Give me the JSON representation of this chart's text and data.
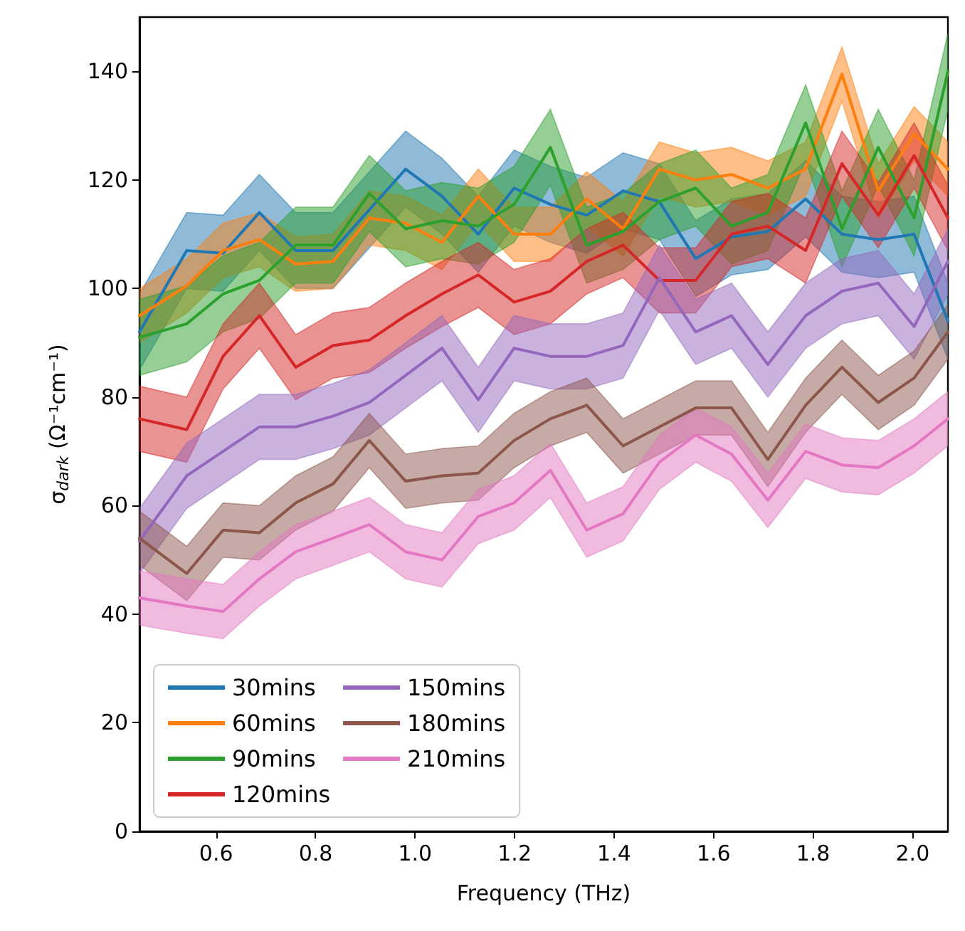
{
  "chart_data": {
    "type": "line",
    "xlabel": "Frequency (THz)",
    "ylabel": "σ$_{dark}$ (Ω⁻¹cm⁻¹)",
    "x": [
      0.446,
      0.541,
      0.614,
      0.687,
      0.76,
      0.835,
      0.908,
      0.981,
      1.054,
      1.127,
      1.199,
      1.272,
      1.345,
      1.418,
      1.491,
      1.564,
      1.636,
      1.709,
      1.785,
      1.858,
      1.931,
      2.003,
      2.071
    ],
    "xlim": [
      0.446,
      2.071
    ],
    "xticks": [
      0.6,
      0.8,
      {
        "value": 1.0,
        "label": "1.0"
      },
      1.2,
      1.4,
      1.6,
      1.8,
      {
        "value": 2.0,
        "label": "2.0"
      }
    ],
    "ylim": [
      0,
      150
    ],
    "yticks": [
      0,
      20,
      40,
      60,
      80,
      100,
      120,
      140
    ],
    "grid": false,
    "legend": "bottom left",
    "marker": "none",
    "line_style": "solid",
    "series": [
      {
        "name": "30mins",
        "color": "#1f77b4",
        "values": [
          92,
          107,
          106.5,
          114,
          107,
          107,
          114.5,
          122,
          117,
          110,
          118.5,
          115.5,
          113.5,
          118,
          116,
          105.5,
          109.5,
          110.5,
          116.5,
          110,
          109,
          110,
          94
        ],
        "upper": [
          99,
          114,
          113.5,
          121,
          114,
          114,
          121.5,
          129,
          124,
          117,
          125.5,
          122.5,
          120.5,
          125,
          123,
          112.5,
          116.5,
          117.5,
          123.5,
          117,
          116,
          117,
          101
        ],
        "lower": [
          85,
          100,
          99.5,
          107,
          100,
          100,
          107.5,
          115,
          110,
          103,
          111.5,
          108.5,
          106.5,
          111,
          109,
          98.5,
          102.5,
          103.5,
          109.5,
          103,
          102,
          103,
          87
        ]
      },
      {
        "name": "60mins",
        "color": "#ff7f0e",
        "values": [
          95,
          100.5,
          107,
          109,
          104.5,
          105,
          113,
          112,
          108.5,
          117,
          110,
          110,
          116.5,
          111,
          122,
          120,
          121,
          118.5,
          122,
          139.5,
          118,
          128.5,
          122
        ],
        "upper": [
          100,
          105.5,
          112,
          114,
          109.5,
          110,
          118,
          117,
          113.5,
          122,
          115,
          115,
          121.5,
          116,
          127,
          125,
          126,
          123.5,
          127,
          144.5,
          123,
          133.5,
          127
        ],
        "lower": [
          90,
          95.5,
          102,
          104,
          99.5,
          100,
          108,
          107,
          103.5,
          112,
          105,
          105,
          111.5,
          106,
          117,
          115,
          116,
          113.5,
          117,
          134.5,
          113,
          123.5,
          117
        ]
      },
      {
        "name": "90mins",
        "color": "#2ca02c",
        "values": [
          91,
          93.5,
          99,
          101.5,
          108,
          108,
          117.5,
          111,
          112.5,
          111.5,
          115.5,
          126,
          108,
          110.5,
          116,
          118.5,
          111.5,
          114,
          130.5,
          111,
          126,
          113,
          140
        ],
        "upper": [
          98,
          100.5,
          106,
          108.5,
          115,
          115,
          124.5,
          118,
          119.5,
          118.5,
          122.5,
          133,
          115,
          117.5,
          123,
          125.5,
          118.5,
          121,
          137.5,
          118,
          133,
          120,
          147
        ],
        "lower": [
          84,
          86.5,
          92,
          94.5,
          101,
          101,
          110.5,
          104,
          105.5,
          104.5,
          108.5,
          119,
          101,
          103.5,
          109,
          111.5,
          104.5,
          107,
          123.5,
          104,
          119,
          106,
          133
        ]
      },
      {
        "name": "120mins",
        "color": "#d62728",
        "values": [
          76,
          74,
          87.5,
          95,
          85.5,
          89.5,
          90.5,
          95,
          99,
          102.5,
          97.5,
          99.5,
          105,
          108,
          101.5,
          101.5,
          110,
          111.5,
          107,
          123,
          113.5,
          124.5,
          113
        ],
        "upper": [
          82,
          80,
          93.5,
          101,
          91.5,
          95.5,
          96.5,
          101,
          105,
          108.5,
          103.5,
          105.5,
          111,
          114,
          107.5,
          107.5,
          116,
          117.5,
          113,
          129,
          119.5,
          130.5,
          119
        ],
        "lower": [
          70,
          68,
          81.5,
          89,
          79.5,
          83.5,
          84.5,
          89,
          93,
          96.5,
          91.5,
          93.5,
          99,
          102,
          95.5,
          95.5,
          104,
          105.5,
          101,
          117,
          107.5,
          118.5,
          107
        ]
      },
      {
        "name": "150mins",
        "color": "#9467bd",
        "values": [
          53.5,
          65.5,
          70,
          74.5,
          74.5,
          76.5,
          79,
          84,
          89,
          79.5,
          89,
          87.5,
          87.5,
          89.5,
          102,
          92,
          95,
          86,
          95,
          99.5,
          101,
          93,
          105
        ],
        "upper": [
          59.5,
          71.5,
          76,
          80.5,
          80.5,
          82.5,
          85,
          90,
          95,
          85.5,
          95,
          93.5,
          93.5,
          95.5,
          108,
          98,
          101,
          92,
          101,
          105.5,
          107,
          99,
          111
        ],
        "lower": [
          47.5,
          59.5,
          64,
          68.5,
          68.5,
          70.5,
          73,
          78,
          83,
          73.5,
          83,
          81.5,
          81.5,
          83.5,
          96,
          86,
          89,
          80,
          89,
          93.5,
          95,
          87,
          99
        ]
      },
      {
        "name": "180mins",
        "color": "#8c564b",
        "values": [
          54,
          47.5,
          55.5,
          55,
          60.5,
          64,
          72,
          64.5,
          65.5,
          66,
          72,
          76,
          78.5,
          71,
          74.5,
          78,
          78,
          68.5,
          78.5,
          85.5,
          79,
          83.5,
          92
        ],
        "upper": [
          59,
          52.5,
          60.5,
          60,
          65.5,
          69,
          77,
          69.5,
          70.5,
          71,
          77,
          81,
          83.5,
          76,
          79.5,
          83,
          83,
          73.5,
          83.5,
          90.5,
          84,
          88.5,
          97
        ],
        "lower": [
          49,
          42.5,
          50.5,
          50,
          55.5,
          59,
          67,
          59.5,
          60.5,
          61,
          67,
          71,
          73.5,
          66,
          69.5,
          73,
          73,
          63.5,
          73.5,
          80.5,
          74,
          78.5,
          87
        ]
      },
      {
        "name": "210mins",
        "color": "#e377c2",
        "values": [
          43,
          41.5,
          40.5,
          46.5,
          51.5,
          54,
          56.5,
          51.5,
          50,
          58,
          60.5,
          66.5,
          55.5,
          58.5,
          68,
          73,
          69.5,
          61,
          70,
          67.5,
          67,
          71,
          76
        ],
        "upper": [
          48,
          46.5,
          45.5,
          51.5,
          56.5,
          59,
          61.5,
          56.5,
          55,
          63,
          65.5,
          71.5,
          60.5,
          63.5,
          73,
          78,
          74.5,
          66,
          75,
          72.5,
          72,
          76,
          81
        ],
        "lower": [
          38,
          36.5,
          35.5,
          41.5,
          46.5,
          49,
          51.5,
          46.5,
          45,
          53,
          55.5,
          61.5,
          50.5,
          53.5,
          63,
          68,
          64.5,
          56,
          65,
          62.5,
          62,
          66,
          71
        ]
      }
    ]
  }
}
